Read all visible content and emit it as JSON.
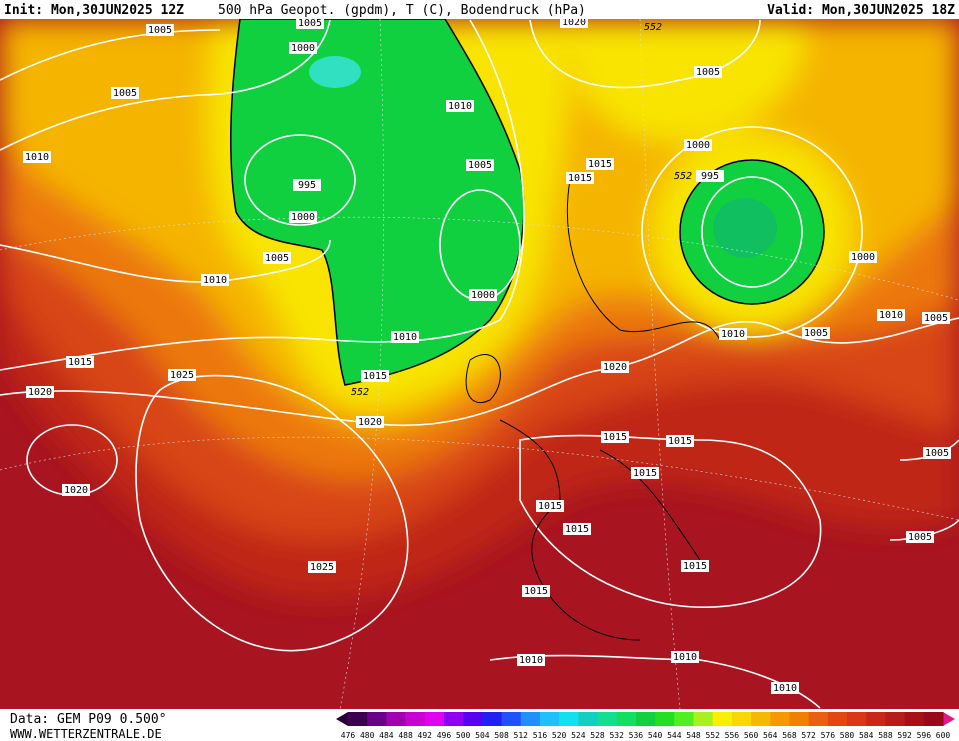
{
  "header": {
    "init": "Init: Mon,30JUN2025 12Z",
    "title": "500 hPa Geopot. (gpdm), T (C), Bodendruck (hPa)",
    "valid": "Valid: Mon,30JUN2025 18Z"
  },
  "isobar_labels": [
    "1005",
    "1005",
    "1000",
    "1005",
    "1010",
    "1010",
    "1005",
    "995",
    "1000",
    "1005",
    "1010",
    "1000",
    "1010",
    "1015",
    "1015",
    "1025",
    "1020",
    "552",
    "1020",
    "1020",
    "1025",
    "1020",
    "552",
    "1005",
    "1000",
    "1015",
    "1015",
    "552",
    "995",
    "1000",
    "1010",
    "1005",
    "1005",
    "1010",
    "1020",
    "1015",
    "1015",
    "1015",
    "1005",
    "1015",
    "1015",
    "1015",
    "1005",
    "1015",
    "1010",
    "1010",
    "1010"
  ],
  "footer": {
    "data": "Data: GEM P09 0.500°",
    "site": "WWW.WETTERZENTRALE.DE"
  },
  "colorbar": {
    "labels": [
      476,
      480,
      484,
      488,
      492,
      496,
      500,
      504,
      508,
      512,
      516,
      520,
      524,
      528,
      532,
      536,
      540,
      544,
      548,
      552,
      556,
      560,
      564,
      568,
      572,
      576,
      580,
      584,
      588,
      592,
      596,
      600
    ],
    "colors": [
      "#3c0050",
      "#6a0088",
      "#a000b0",
      "#c800d0",
      "#e000f0",
      "#9000f0",
      "#5a00f0",
      "#2020f0",
      "#2050ff",
      "#2090ff",
      "#20c0ff",
      "#10e0f0",
      "#10d0c0",
      "#10e090",
      "#10e060",
      "#10d040",
      "#20e020",
      "#50f020",
      "#a8f020",
      "#f8f000",
      "#f8d800",
      "#f8b800",
      "#f89800",
      "#f08000",
      "#e86010",
      "#e04810",
      "#d83818",
      "#c82818",
      "#b81c18",
      "#a81018",
      "#980818"
    ]
  }
}
